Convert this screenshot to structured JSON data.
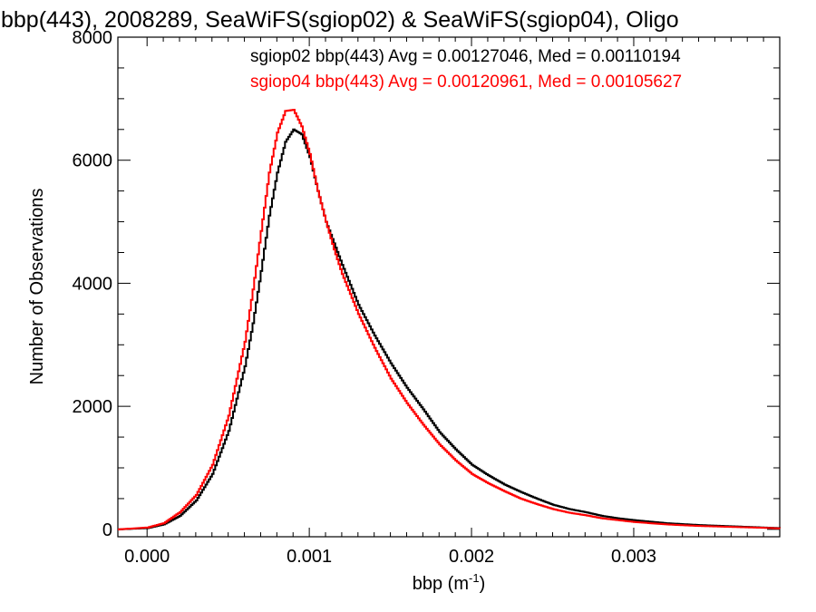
{
  "chart_data": {
    "type": "line",
    "title": "bbp(443), 2008289, SeaWiFS(sgiop02) & SeaWiFS(sgiop04), Oligo",
    "xlabel": "bbp (m",
    "xlabel_sup": "-1",
    "xlabel_suffix": ")",
    "ylabel": "Number of Observations",
    "xlim": [
      -0.00018,
      0.0039
    ],
    "ylim": [
      -120,
      8000
    ],
    "x_ticks": [
      {
        "value": 0.0,
        "label": "0.000"
      },
      {
        "value": 0.001,
        "label": "0.001"
      },
      {
        "value": 0.002,
        "label": "0.002"
      },
      {
        "value": 0.003,
        "label": "0.003"
      }
    ],
    "y_ticks": [
      {
        "value": 0,
        "label": "0"
      },
      {
        "value": 2000,
        "label": "2000"
      },
      {
        "value": 4000,
        "label": "4000"
      },
      {
        "value": 6000,
        "label": "6000"
      },
      {
        "value": 8000,
        "label": "8000"
      }
    ],
    "legend": [
      {
        "text": "sgiop02 bbp(443) Avg = 0.00127046, Med = 0.00110194",
        "color": "#000000"
      },
      {
        "text": "sgiop04 bbp(443) Avg = 0.00120961, Med = 0.00105627",
        "color": "#ff0000"
      }
    ],
    "series": [
      {
        "color": "#000000",
        "x": [
          -0.00018,
          0.0,
          0.0001,
          0.0002,
          0.0003,
          0.0004,
          0.0005,
          0.0006,
          0.00065,
          0.0007,
          0.00075,
          0.0008,
          0.00085,
          0.0009,
          0.00095,
          0.001,
          0.00105,
          0.0011,
          0.00115,
          0.0012,
          0.0013,
          0.0014,
          0.0015,
          0.0016,
          0.0017,
          0.0018,
          0.0019,
          0.002,
          0.0021,
          0.0022,
          0.0023,
          0.0024,
          0.0025,
          0.0026,
          0.0027,
          0.0028,
          0.0029,
          0.003,
          0.0032,
          0.0034,
          0.0036,
          0.0038,
          0.0039
        ],
        "y": [
          0,
          20,
          80,
          220,
          470,
          900,
          1600,
          2650,
          3350,
          4200,
          5100,
          5800,
          6300,
          6500,
          6420,
          6050,
          5500,
          5000,
          4650,
          4300,
          3650,
          3150,
          2700,
          2300,
          1950,
          1580,
          1300,
          1050,
          880,
          730,
          610,
          500,
          400,
          330,
          280,
          220,
          180,
          150,
          100,
          70,
          50,
          30,
          20
        ]
      },
      {
        "color": "#ff0000",
        "x": [
          -0.00018,
          0.0,
          0.0001,
          0.0002,
          0.0003,
          0.0004,
          0.0005,
          0.0006,
          0.00065,
          0.0007,
          0.00075,
          0.0008,
          0.00085,
          0.0009,
          0.00095,
          0.001,
          0.00105,
          0.0011,
          0.00115,
          0.0012,
          0.0013,
          0.0014,
          0.0015,
          0.0016,
          0.0017,
          0.0018,
          0.0019,
          0.002,
          0.0021,
          0.0022,
          0.0023,
          0.0024,
          0.0025,
          0.0026,
          0.0027,
          0.0028,
          0.0029,
          0.003,
          0.0032,
          0.0034,
          0.0036,
          0.0038,
          0.0039
        ],
        "y": [
          0,
          30,
          100,
          280,
          560,
          1050,
          1850,
          3050,
          3900,
          4850,
          5800,
          6450,
          6800,
          6820,
          6550,
          6100,
          5500,
          5000,
          4550,
          4150,
          3500,
          2950,
          2450,
          2050,
          1700,
          1380,
          1120,
          900,
          750,
          620,
          500,
          410,
          330,
          270,
          230,
          180,
          150,
          120,
          80,
          55,
          40,
          25,
          15
        ]
      }
    ]
  }
}
